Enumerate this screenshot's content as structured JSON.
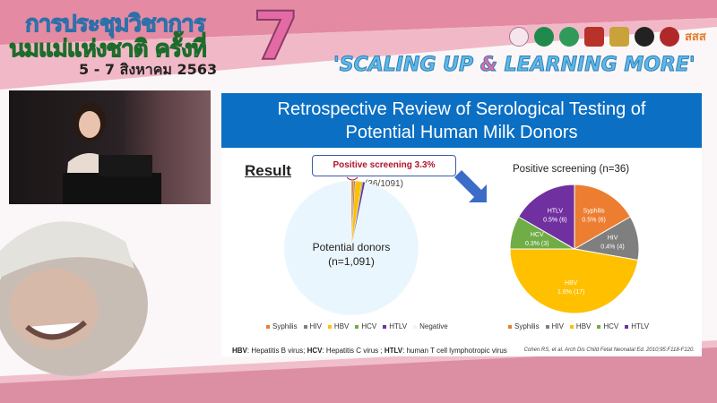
{
  "banner": {
    "thai_title_line1": "การประชุมวิชาการ",
    "thai_title_line2": "นมแม่แห่งชาติ ครั้งที่",
    "number": "7",
    "date": "5 - 7 สิงหาคม 2563",
    "slogan_part1": "'SCALING UP ",
    "slogan_amp": "&",
    "slogan_part2": " LEARNING MORE'",
    "logo_text": "สสส"
  },
  "slide": {
    "title_line1": "Retrospective Review of Serological Testing of",
    "title_line2": "Potential Human Milk Donors",
    "result_label": "Result",
    "callout_bold": "Positive screening 3.3%",
    "callout_count": "(36/1091)",
    "footnote_hbv": "HBV",
    "footnote_hbv_text": ": Hepatitis B virus; ",
    "footnote_hcv": "HCV",
    "footnote_hcv_text": ": Hepatitis C virus ; ",
    "footnote_htlv": "HTLV",
    "footnote_htlv_text": ": human T cell lymphotropic virus",
    "citation": "Cohen RS, et al. Arch Dis Child Fetal Neonatal Ed. 2010;95:F118-F120."
  },
  "chart_data": [
    {
      "type": "pie",
      "center_label_line1": "Potential donors",
      "center_label_line2": "(n=1,091)",
      "categories": [
        "Syphilis",
        "HIV",
        "HBV",
        "HCV",
        "HTLV",
        "Negative"
      ],
      "values": [
        6,
        4,
        17,
        3,
        6,
        1055
      ],
      "colors": [
        "#ed7d31",
        "#7f7f7f",
        "#ffc000",
        "#70ad47",
        "#7030a0",
        "#eaf6fd"
      ],
      "legend": [
        "Syphilis",
        "HIV",
        "HBV",
        "HCV",
        "HTLV",
        "Negative"
      ],
      "legend_position": "bottom"
    },
    {
      "type": "pie",
      "title": "Positive screening (n=36)",
      "categories": [
        "Syphilis",
        "HIV",
        "HBV",
        "HCV",
        "HTLV"
      ],
      "values": [
        6,
        4,
        17,
        3,
        6
      ],
      "data_labels": [
        "0.5% (6)",
        "0.4% (4)",
        "1.6% (17)",
        "0.3% (3)",
        "0.5% (6)"
      ],
      "colors": [
        "#ed7d31",
        "#7f7f7f",
        "#ffc000",
        "#70ad47",
        "#7030a0"
      ],
      "legend": [
        "Syphilis",
        "HIV",
        "HBV",
        "HCV",
        "HTLV"
      ],
      "legend_position": "bottom"
    }
  ]
}
